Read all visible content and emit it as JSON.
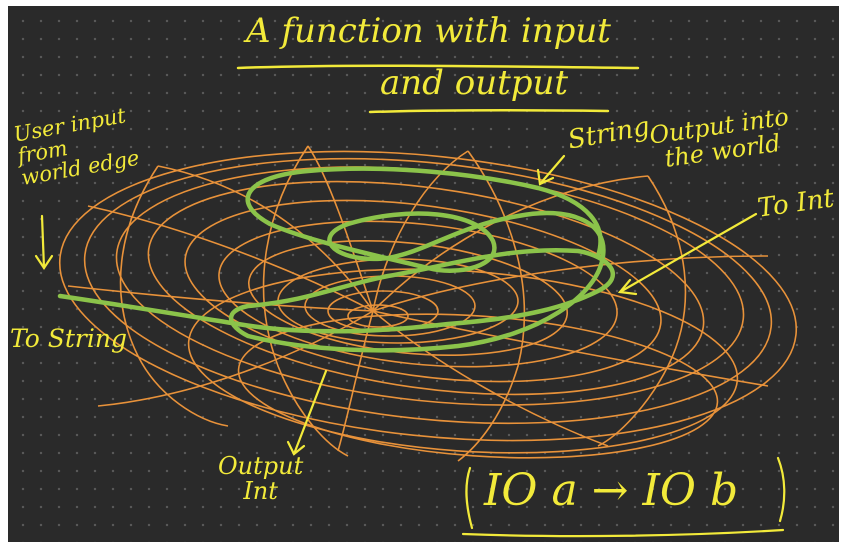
{
  "title_line1": "A function with input",
  "title_line2": "and output",
  "labels": {
    "user_input": "User input\nfrom\nworld edge",
    "to_string": "To String",
    "string": "String",
    "output_into_world": "Output into\nthe world",
    "to_int": "To Int",
    "output_int": "Output\nInt",
    "formula": "IO a → IO b"
  },
  "colors": {
    "background": "#2a2a2a",
    "ink_yellow": "#f2ea3a",
    "torus_orange": "#e8923a",
    "path_green": "#8bc34a"
  }
}
